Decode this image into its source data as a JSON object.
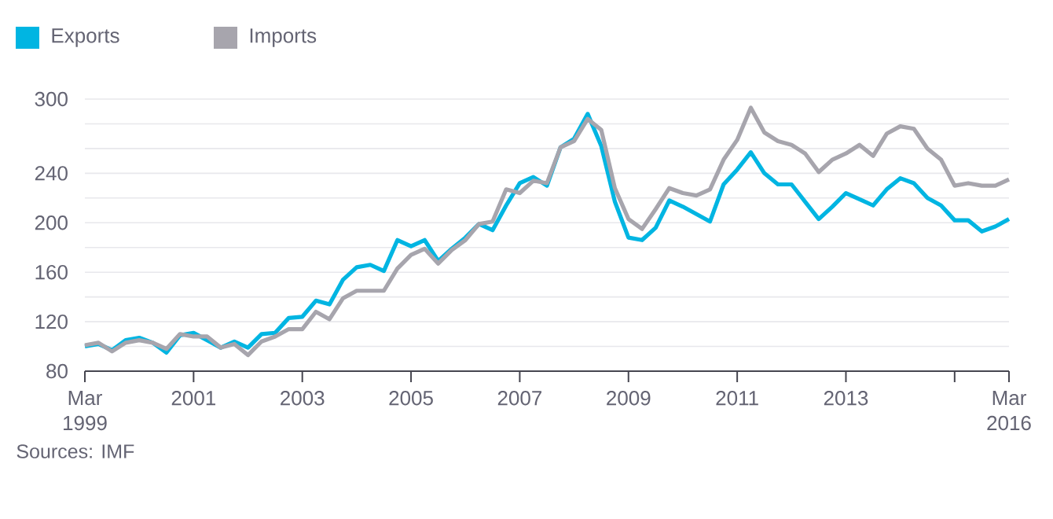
{
  "chart_data": {
    "type": "line",
    "x": [
      "1999-03",
      "1999-06",
      "1999-09",
      "1999-12",
      "2000-03",
      "2000-06",
      "2000-09",
      "2000-12",
      "2001-03",
      "2001-06",
      "2001-09",
      "2001-12",
      "2002-03",
      "2002-06",
      "2002-09",
      "2002-12",
      "2003-03",
      "2003-06",
      "2003-09",
      "2003-12",
      "2004-03",
      "2004-06",
      "2004-09",
      "2004-12",
      "2005-03",
      "2005-06",
      "2005-09",
      "2005-12",
      "2006-03",
      "2006-06",
      "2006-09",
      "2006-12",
      "2007-03",
      "2007-06",
      "2007-09",
      "2007-12",
      "2008-03",
      "2008-06",
      "2008-09",
      "2008-12",
      "2009-03",
      "2009-06",
      "2009-09",
      "2009-12",
      "2010-03",
      "2010-06",
      "2010-09",
      "2010-12",
      "2011-03",
      "2011-06",
      "2011-09",
      "2011-12",
      "2012-03",
      "2012-06",
      "2012-09",
      "2012-12",
      "2013-03",
      "2013-06",
      "2013-09",
      "2013-12",
      "2014-03",
      "2014-06",
      "2014-09",
      "2014-12",
      "2015-03",
      "2015-06",
      "2015-09",
      "2015-12",
      "2016-03"
    ],
    "series": [
      {
        "name": "Exports",
        "color": "#00b5e2",
        "values": [
          100,
          102,
          97,
          105,
          107,
          103,
          95,
          109,
          111,
          105,
          99,
          104,
          99,
          110,
          111,
          123,
          124,
          137,
          134,
          154,
          164,
          166,
          161,
          186,
          181,
          186,
          169,
          179,
          188,
          199,
          194,
          214,
          232,
          237,
          230,
          261,
          268,
          288,
          262,
          217,
          188,
          186,
          196,
          218,
          213,
          207,
          201,
          231,
          243,
          257,
          240,
          231,
          231,
          217,
          203,
          213,
          224,
          219,
          214,
          227,
          236,
          232,
          220,
          214,
          202,
          202,
          193,
          197,
          203
        ]
      },
      {
        "name": "Imports",
        "color": "#a7a5ad",
        "values": [
          101,
          103,
          96,
          103,
          105,
          103,
          98,
          110,
          108,
          108,
          99,
          102,
          93,
          104,
          108,
          114,
          114,
          128,
          122,
          139,
          145,
          145,
          145,
          163,
          174,
          179,
          167,
          178,
          186,
          199,
          201,
          227,
          224,
          234,
          232,
          261,
          266,
          284,
          275,
          228,
          203,
          195,
          211,
          228,
          224,
          222,
          227,
          251,
          267,
          293,
          273,
          266,
          263,
          256,
          241,
          251,
          256,
          263,
          254,
          272,
          278,
          276,
          260,
          251,
          230,
          232,
          230,
          230,
          235
        ]
      }
    ],
    "xlim": [
      "1999-03",
      "2016-03"
    ],
    "xticks": [
      {
        "value": "1999-03",
        "label": "Mar 1999"
      },
      {
        "value": "2001-03",
        "label": "2001"
      },
      {
        "value": "2003-03",
        "label": "2003"
      },
      {
        "value": "2005-03",
        "label": "2005"
      },
      {
        "value": "2007-03",
        "label": "2007"
      },
      {
        "value": "2009-03",
        "label": "2009"
      },
      {
        "value": "2011-03",
        "label": "2011"
      },
      {
        "value": "2013-03",
        "label": "2013"
      },
      {
        "value": "2015-03",
        "label": null
      },
      {
        "value": "2016-03",
        "label": "Mar 2016"
      }
    ],
    "ylim": [
      80,
      300
    ],
    "yticks": [
      80,
      {
        "value": 100,
        "label": null
      },
      120,
      {
        "value": 140,
        "label": null
      },
      160,
      {
        "value": 180,
        "label": null
      },
      200,
      {
        "value": 220,
        "label": null
      },
      240,
      {
        "value": 260,
        "label": null
      },
      {
        "value": 280,
        "label": null
      },
      300
    ],
    "grid": "y",
    "legend": "top left",
    "marker": "none",
    "line_style": "solid",
    "annotations": [
      "Sources: IMF"
    ]
  }
}
